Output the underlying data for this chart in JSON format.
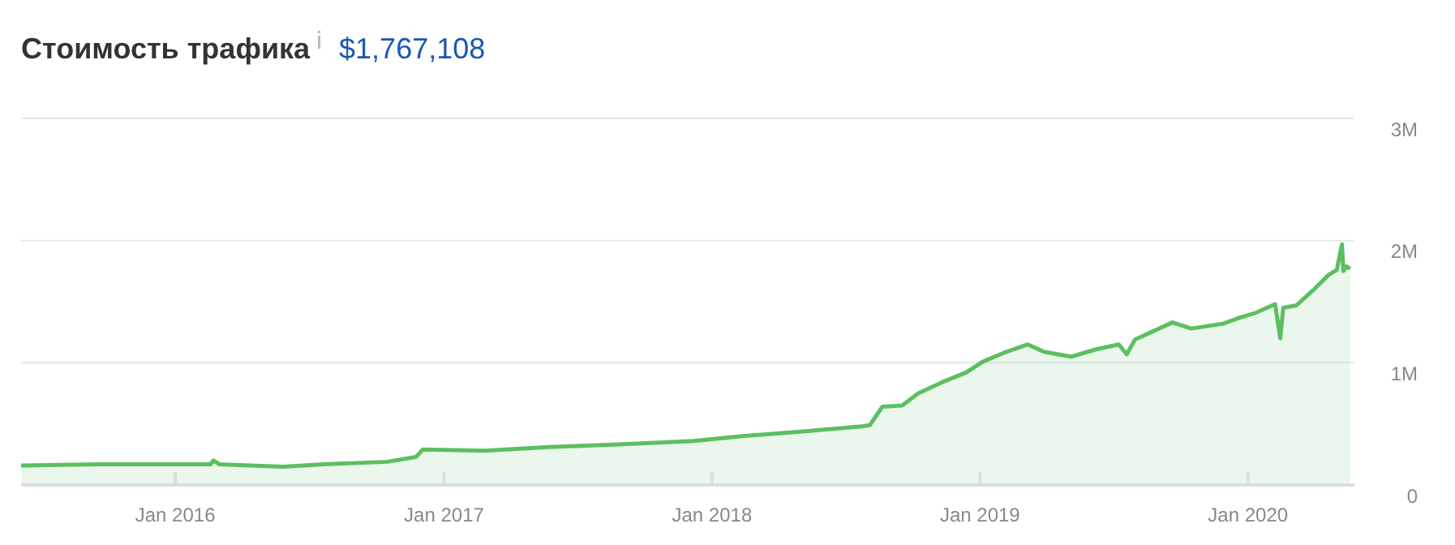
{
  "chart_data": {
    "type": "area",
    "title": "Стоимость трафика",
    "subtitle": "$1,767,108",
    "x": [
      "2015-06-05",
      "2015-09-17",
      "2016-01-01",
      "2016-02-18",
      "2016-02-22",
      "2016-03-01",
      "2016-05-27",
      "2016-07-20",
      "2016-10-16",
      "2016-11-24",
      "2016-12-03",
      "2017-02-25",
      "2017-05-23",
      "2017-08-19",
      "2017-12-07",
      "2018-02-11",
      "2018-05-09",
      "2018-07-24",
      "2018-08-04",
      "2018-08-21",
      "2018-09-17",
      "2018-10-09",
      "2018-11-10",
      "2018-12-13",
      "2019-01-05",
      "2019-02-06",
      "2019-03-07",
      "2019-03-29",
      "2019-05-05",
      "2019-06-08",
      "2019-07-09",
      "2019-07-20",
      "2019-07-31",
      "2019-09-20",
      "2019-10-16",
      "2019-11-28",
      "2019-12-21",
      "2020-01-12",
      "2020-02-07",
      "2020-02-14",
      "2020-02-18",
      "2020-03-07",
      "2020-03-29",
      "2020-04-20",
      "2020-05-01",
      "2020-05-08",
      "2020-05-10",
      "2020-05-14",
      "2020-05-19"
    ],
    "series": [
      {
        "color": "#5cbf60",
        "values": [
          160000,
          170000,
          170000,
          170000,
          200000,
          170000,
          150000,
          170000,
          190000,
          230000,
          290000,
          280000,
          310000,
          330000,
          360000,
          400000,
          440000,
          480000,
          490000,
          640000,
          650000,
          750000,
          840000,
          920000,
          1010000,
          1090000,
          1150000,
          1090000,
          1050000,
          1110000,
          1150000,
          1070000,
          1190000,
          1330000,
          1280000,
          1320000,
          1370000,
          1410000,
          1480000,
          1200000,
          1450000,
          1470000,
          1590000,
          1720000,
          1760000,
          1970000,
          1750000,
          1790000,
          1770000
        ]
      }
    ],
    "xlim": [
      "2015-06-05",
      "2020-05-25"
    ],
    "xticks": [
      {
        "value": "2016-01-01",
        "label": "Jan 2016"
      },
      {
        "value": "2017-01-01",
        "label": "Jan 2017"
      },
      {
        "value": "2018-01-01",
        "label": "Jan 2018"
      },
      {
        "value": "2019-01-01",
        "label": "Jan 2019"
      },
      {
        "value": "2020-01-01",
        "label": "Jan 2020"
      }
    ],
    "ylim": [
      0,
      3000000
    ],
    "yticks": [
      {
        "value": 0,
        "label": "0"
      },
      {
        "value": 1000000,
        "label": "1M"
      },
      {
        "value": 2000000,
        "label": "2M"
      },
      {
        "value": 3000000,
        "label": "3M"
      }
    ],
    "grid": "y"
  }
}
